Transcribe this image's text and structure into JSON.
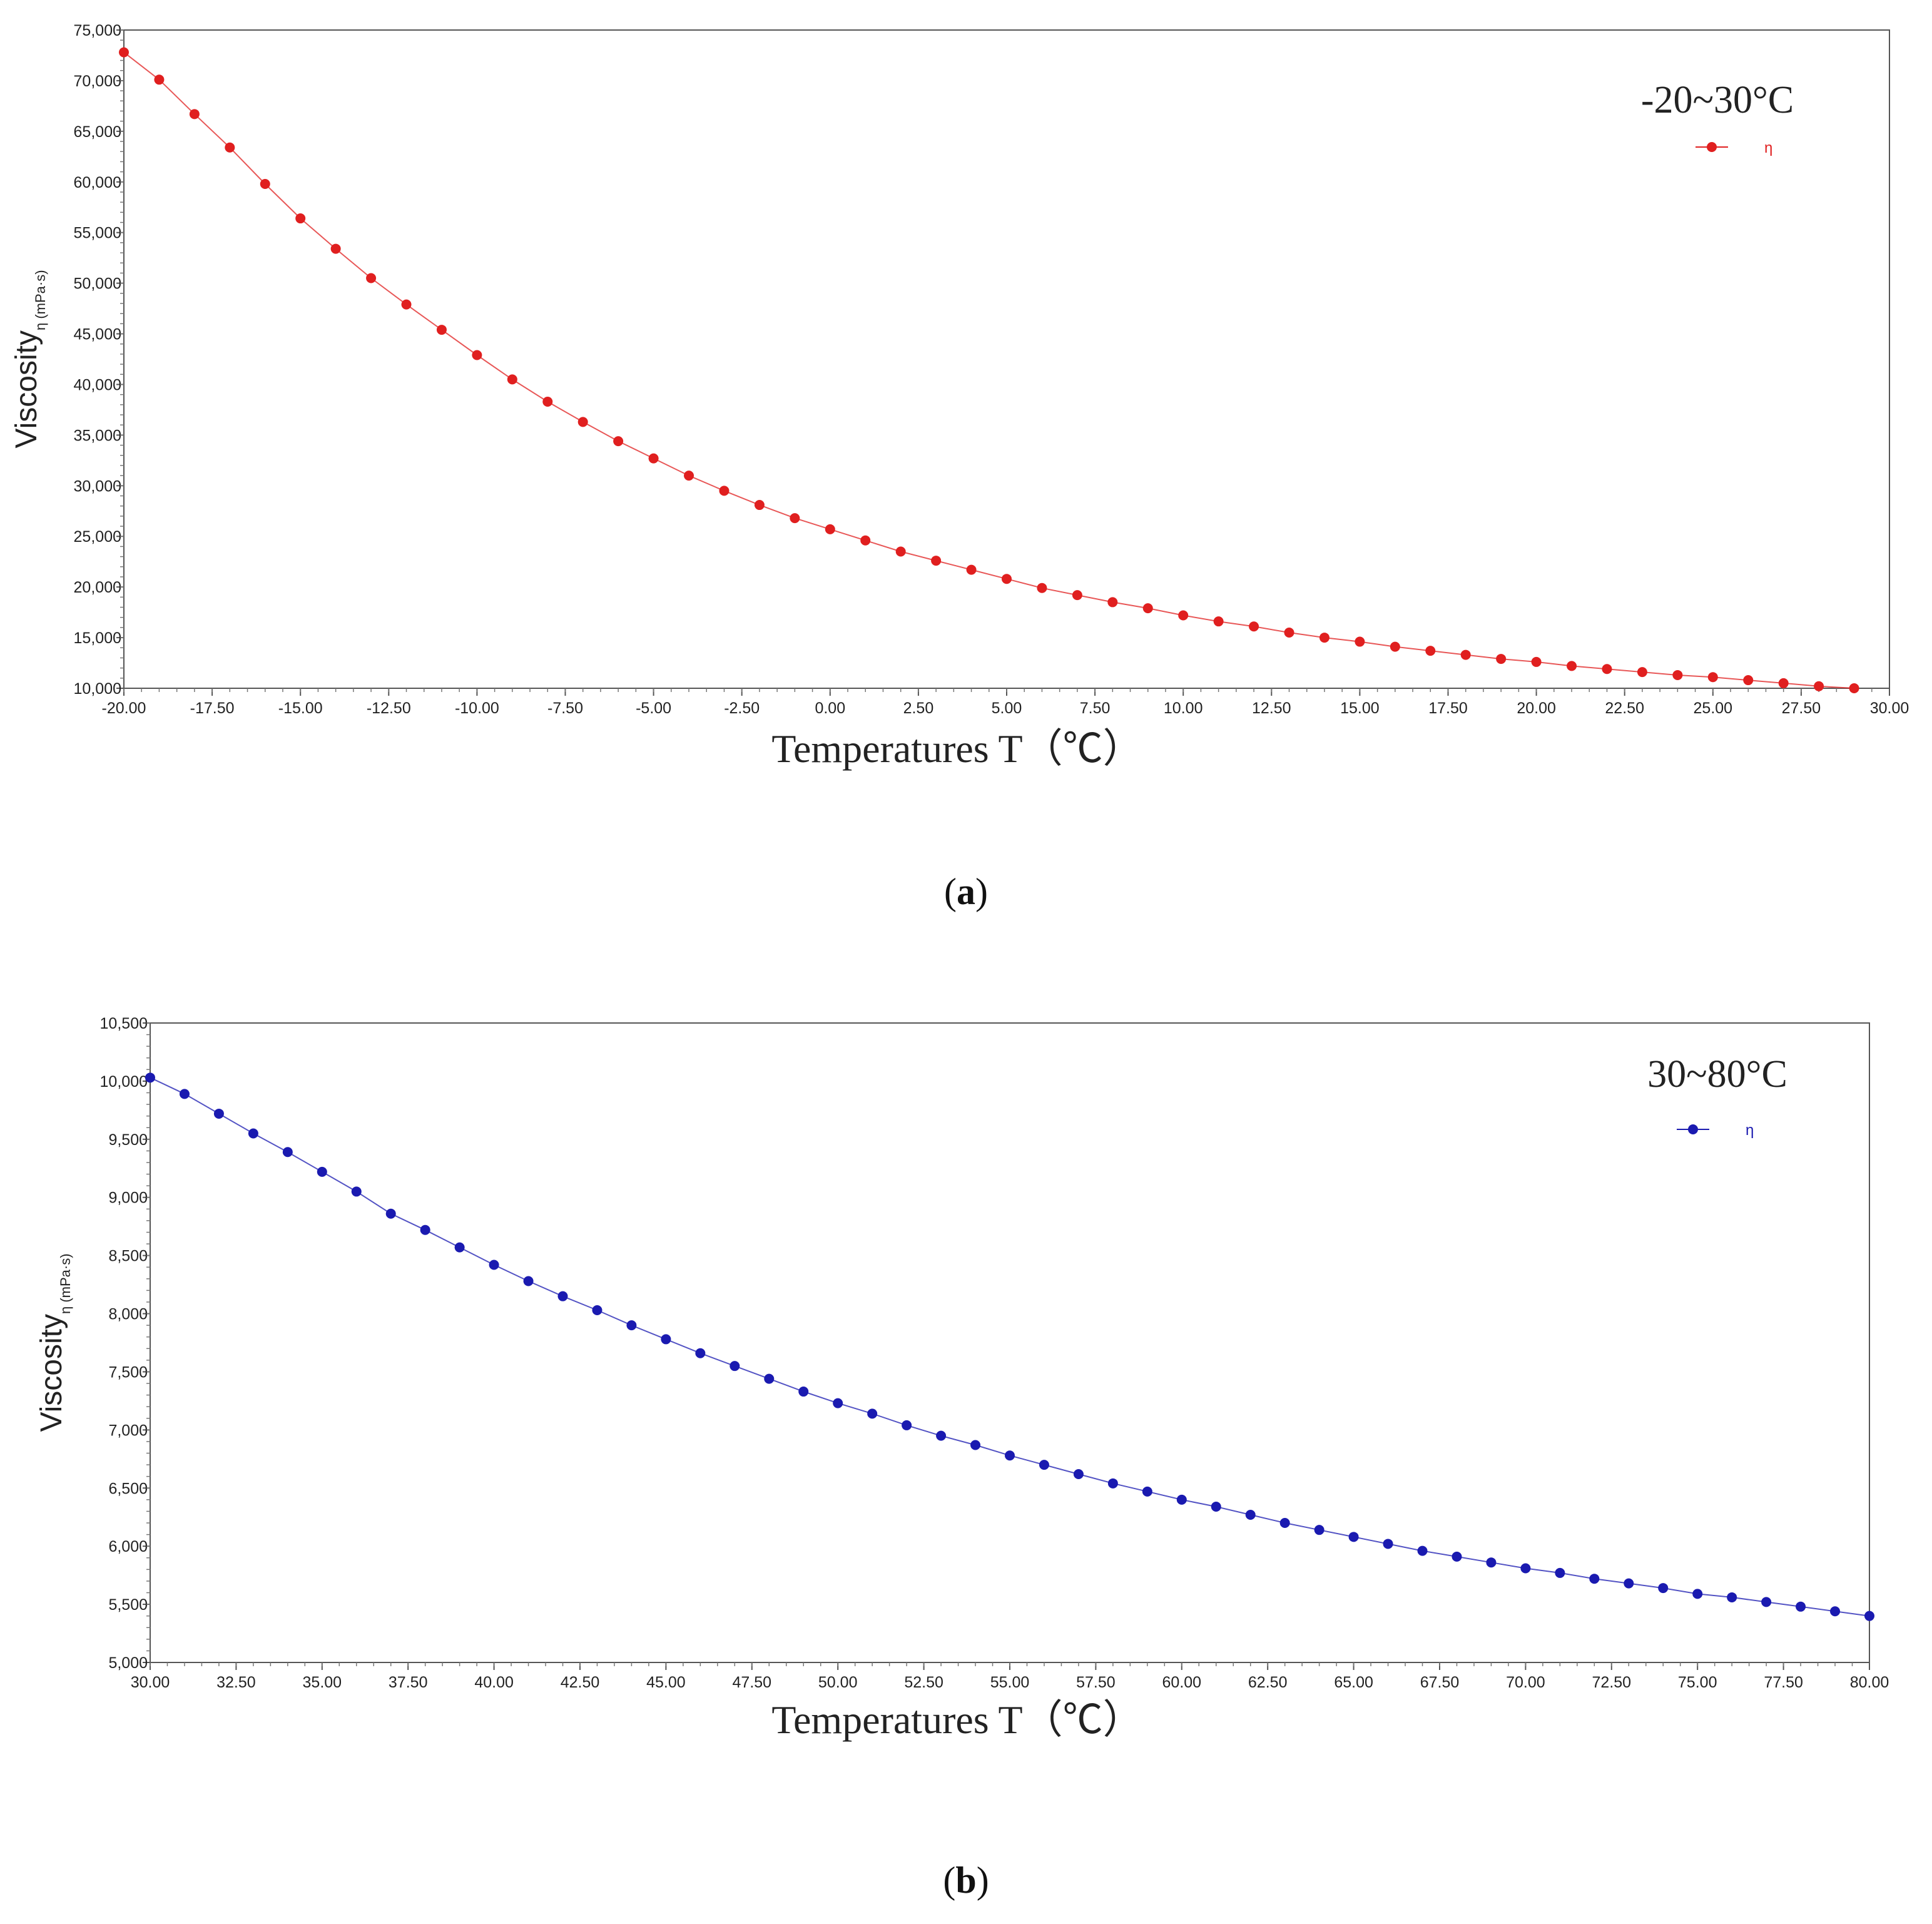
{
  "chart_data": [
    {
      "type": "line",
      "panel": "a",
      "caption_letter": "a",
      "range_label": "-20~30°C",
      "xlabel": "Temperatures  T（℃）",
      "ylabel": "Viscosity",
      "ylabel_sub": "η (mPa·s)",
      "xlim": [
        -20,
        30
      ],
      "ylim": [
        10000,
        75000
      ],
      "xticks": [
        "-20.00",
        "-17.50",
        "-15.00",
        "-12.50",
        "-10.00",
        "-7.50",
        "-5.00",
        "-2.50",
        "0.00",
        "2.50",
        "5.00",
        "7.50",
        "10.00",
        "12.50",
        "15.00",
        "17.50",
        "20.00",
        "22.50",
        "25.00",
        "27.50",
        "30.00"
      ],
      "yticks": [
        "10,000",
        "15,000",
        "20,000",
        "25,000",
        "30,000",
        "35,000",
        "40,000",
        "45,000",
        "50,000",
        "55,000",
        "60,000",
        "65,000",
        "70,000",
        "75,000"
      ],
      "color": "#e01f1f",
      "series": [
        {
          "name": "η",
          "x": [
            -20,
            -19,
            -18,
            -17,
            -16,
            -15,
            -14,
            -13,
            -12,
            -11,
            -10,
            -9,
            -8,
            -7,
            -6,
            -5,
            -4,
            -3,
            -2,
            -1,
            0,
            1,
            2,
            3,
            4,
            5,
            6,
            7,
            8,
            9,
            10,
            11,
            12,
            13,
            14,
            15,
            16,
            17,
            18,
            19,
            20,
            21,
            22,
            23,
            24,
            25,
            26,
            27,
            28,
            29
          ],
          "y": [
            72800,
            70100,
            66700,
            63400,
            59800,
            56400,
            53400,
            50500,
            47900,
            45400,
            42900,
            40500,
            38300,
            36300,
            34400,
            32700,
            31000,
            29500,
            28100,
            26800,
            25700,
            24600,
            23500,
            22600,
            21700,
            20800,
            19900,
            19200,
            18500,
            17900,
            17200,
            16600,
            16100,
            15500,
            15000,
            14600,
            14100,
            13700,
            13300,
            12900,
            12600,
            12200,
            11900,
            11600,
            11300,
            11100,
            10800,
            10500,
            10200,
            10000
          ]
        }
      ]
    },
    {
      "type": "line",
      "panel": "b",
      "caption_letter": "b",
      "range_label": "30~80°C",
      "xlabel": "Temperatures  T（℃）",
      "ylabel": "Viscosity",
      "ylabel_sub": "η (mPa·s)",
      "xlim": [
        30,
        80
      ],
      "ylim": [
        5000,
        10500
      ],
      "xticks": [
        "30.00",
        "32.50",
        "35.00",
        "37.50",
        "40.00",
        "42.50",
        "45.00",
        "47.50",
        "50.00",
        "52.50",
        "55.00",
        "57.50",
        "60.00",
        "62.50",
        "65.00",
        "67.50",
        "70.00",
        "72.50",
        "75.00",
        "77.50",
        "80.00"
      ],
      "yticks": [
        "5,000",
        "5,500",
        "6,000",
        "6,500",
        "7,000",
        "7,500",
        "8,000",
        "8,500",
        "9,000",
        "9,500",
        "10,000",
        "10,500"
      ],
      "color": "#1a1ab0",
      "series": [
        {
          "name": "η",
          "x": [
            30,
            31,
            32,
            33,
            34,
            35,
            36,
            37,
            38,
            39,
            40,
            41,
            42,
            43,
            44,
            45,
            46,
            47,
            48,
            49,
            50,
            51,
            52,
            53,
            54,
            55,
            56,
            57,
            58,
            59,
            60,
            61,
            62,
            63,
            64,
            65,
            66,
            67,
            68,
            69,
            70,
            71,
            72,
            73,
            74,
            75,
            76,
            77,
            78,
            79,
            80
          ],
          "y": [
            10030,
            9890,
            9720,
            9550,
            9390,
            9220,
            9050,
            8860,
            8720,
            8570,
            8420,
            8280,
            8150,
            8030,
            7900,
            7780,
            7660,
            7550,
            7440,
            7330,
            7230,
            7140,
            7040,
            6950,
            6870,
            6780,
            6700,
            6620,
            6540,
            6470,
            6400,
            6340,
            6270,
            6200,
            6140,
            6080,
            6020,
            5960,
            5910,
            5860,
            5810,
            5770,
            5720,
            5680,
            5640,
            5590,
            5560,
            5520,
            5480,
            5440,
            5400
          ]
        }
      ]
    }
  ]
}
